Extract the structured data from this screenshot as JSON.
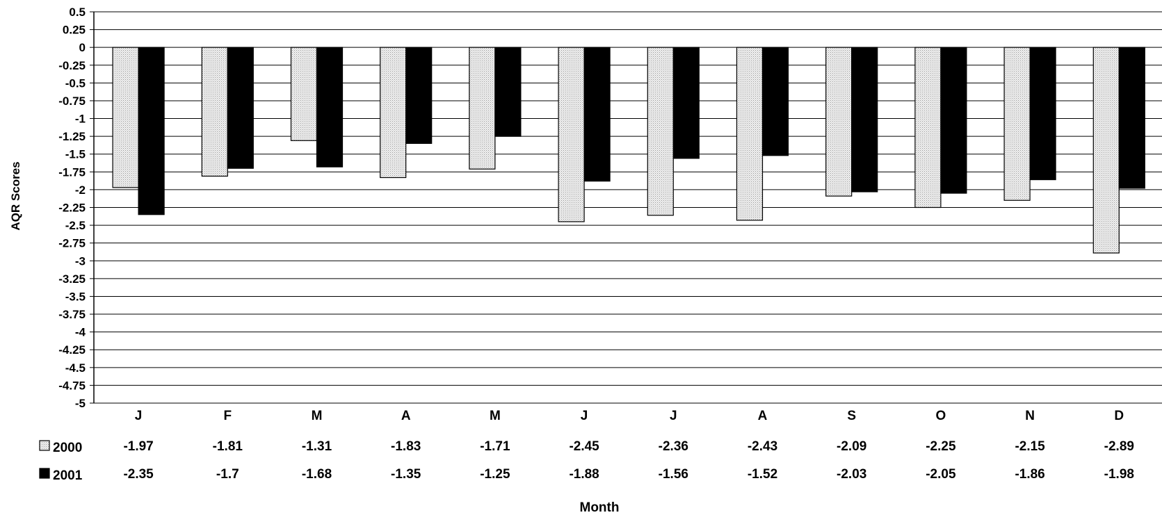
{
  "chart_data": {
    "type": "bar",
    "title": "",
    "xlabel": "Month",
    "ylabel": "AQR Scores",
    "ylim": [
      -5,
      0.5
    ],
    "ytick_step": 0.25,
    "yticks": [
      "0.5",
      "0.25",
      "0",
      "-0.25",
      "-0.5",
      "-0.75",
      "-1",
      "-1.25",
      "-1.5",
      "-1.75",
      "-2",
      "-2.25",
      "-2.5",
      "-2.75",
      "-3",
      "-3.25",
      "-3.5",
      "-3.75",
      "-4",
      "-4.25",
      "-4.5",
      "-4.75",
      "-5"
    ],
    "grid": true,
    "legend": "data-table-left",
    "categories": [
      "J",
      "F",
      "M",
      "A",
      "M",
      "J",
      "J",
      "A",
      "S",
      "O",
      "N",
      "D"
    ],
    "series": [
      {
        "name": "2000",
        "color": "#e6e6e6",
        "pattern": "dotted",
        "values": [
          -1.97,
          -1.81,
          -1.31,
          -1.83,
          -1.71,
          -2.45,
          -2.36,
          -2.43,
          -2.09,
          -2.25,
          -2.15,
          -2.89
        ],
        "labels": [
          "-1.97",
          "-1.81",
          "-1.31",
          "-1.83",
          "-1.71",
          "-2.45",
          "-2.36",
          "-2.43",
          "-2.09",
          "-2.25",
          "-2.15",
          "-2.89"
        ]
      },
      {
        "name": "2001",
        "color": "#000000",
        "pattern": "solid",
        "values": [
          -2.35,
          -1.7,
          -1.68,
          -1.35,
          -1.25,
          -1.88,
          -1.56,
          -1.52,
          -2.03,
          -2.05,
          -1.86,
          -1.98
        ],
        "labels": [
          "-2.35",
          "-1.7",
          "-1.68",
          "-1.35",
          "-1.25",
          "-1.88",
          "-1.56",
          "-1.52",
          "-2.03",
          "-2.05",
          "-1.86",
          "-1.98"
        ]
      }
    ]
  }
}
